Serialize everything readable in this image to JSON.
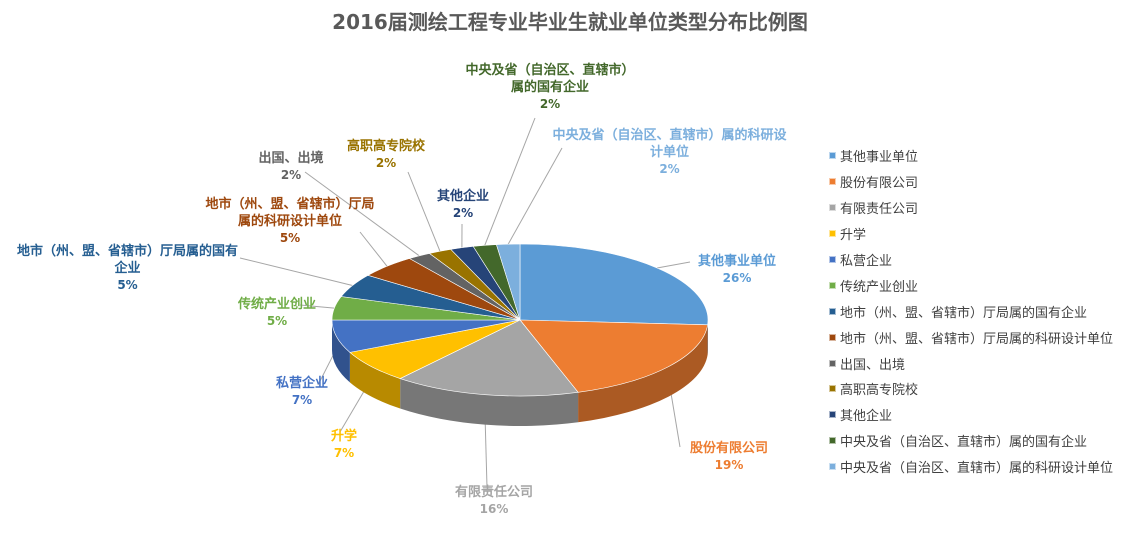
{
  "chart_data": {
    "type": "pie",
    "title": "2016届测绘工程专业毕业生就业单位类型分布比例图",
    "legend_position": "right",
    "slices": [
      {
        "label": "其他事业单位",
        "legend": "其他事业单位",
        "value": 26,
        "pct_label": "26%",
        "color": "#5b9bd5"
      },
      {
        "label": "股份有限公司",
        "legend": "股份有限公司",
        "value": 19,
        "pct_label": "19%",
        "color": "#ed7d31"
      },
      {
        "label": "有限责任公司",
        "legend": "有限责任公司",
        "value": 16,
        "pct_label": "16%",
        "color": "#a5a5a5"
      },
      {
        "label": "升学",
        "legend": "升学",
        "value": 7,
        "pct_label": "7%",
        "color": "#ffc000"
      },
      {
        "label": "私营企业",
        "legend": "私营企业",
        "value": 7,
        "pct_label": "7%",
        "color": "#4472c4"
      },
      {
        "label": "传统产业创业",
        "legend": "传统产业创业",
        "value": 5,
        "pct_label": "5%",
        "color": "#70ad47"
      },
      {
        "label": "地市（州、盟、省辖市）厅局属的国有企业",
        "legend": "地市（州、盟、省辖市）厅局属的国有企业",
        "value": 5,
        "pct_label": "5%",
        "color": "#255e91"
      },
      {
        "label": "地市（州、盟、省辖市）厅局属的科研设计单位",
        "legend": "地市（州、盟、省辖市）厅局属的科研设计单位",
        "value": 5,
        "pct_label": "5%",
        "color": "#9e480e"
      },
      {
        "label": "出国、出境",
        "legend": "出国、出境",
        "value": 2,
        "pct_label": "2%",
        "color": "#636363"
      },
      {
        "label": "高职高专院校",
        "legend": "高职高专院校",
        "value": 2,
        "pct_label": "2%",
        "color": "#997300"
      },
      {
        "label": "其他企业",
        "legend": "其他企业",
        "value": 2,
        "pct_label": "2%",
        "color": "#264478"
      },
      {
        "label": "中央及省（自治区、直辖市）属的国有企业",
        "legend": "中央及省（自治区、直辖市）属的国有企业",
        "value": 2,
        "pct_label": "2%",
        "color": "#43682b"
      },
      {
        "label": "中央及省（自治区、直辖市）属的科研设计单位",
        "legend": "中央及省（自治区、直辖市）属的科研设计单位",
        "value": 2,
        "pct_label": "2%",
        "color": "#7cafdd"
      }
    ]
  }
}
